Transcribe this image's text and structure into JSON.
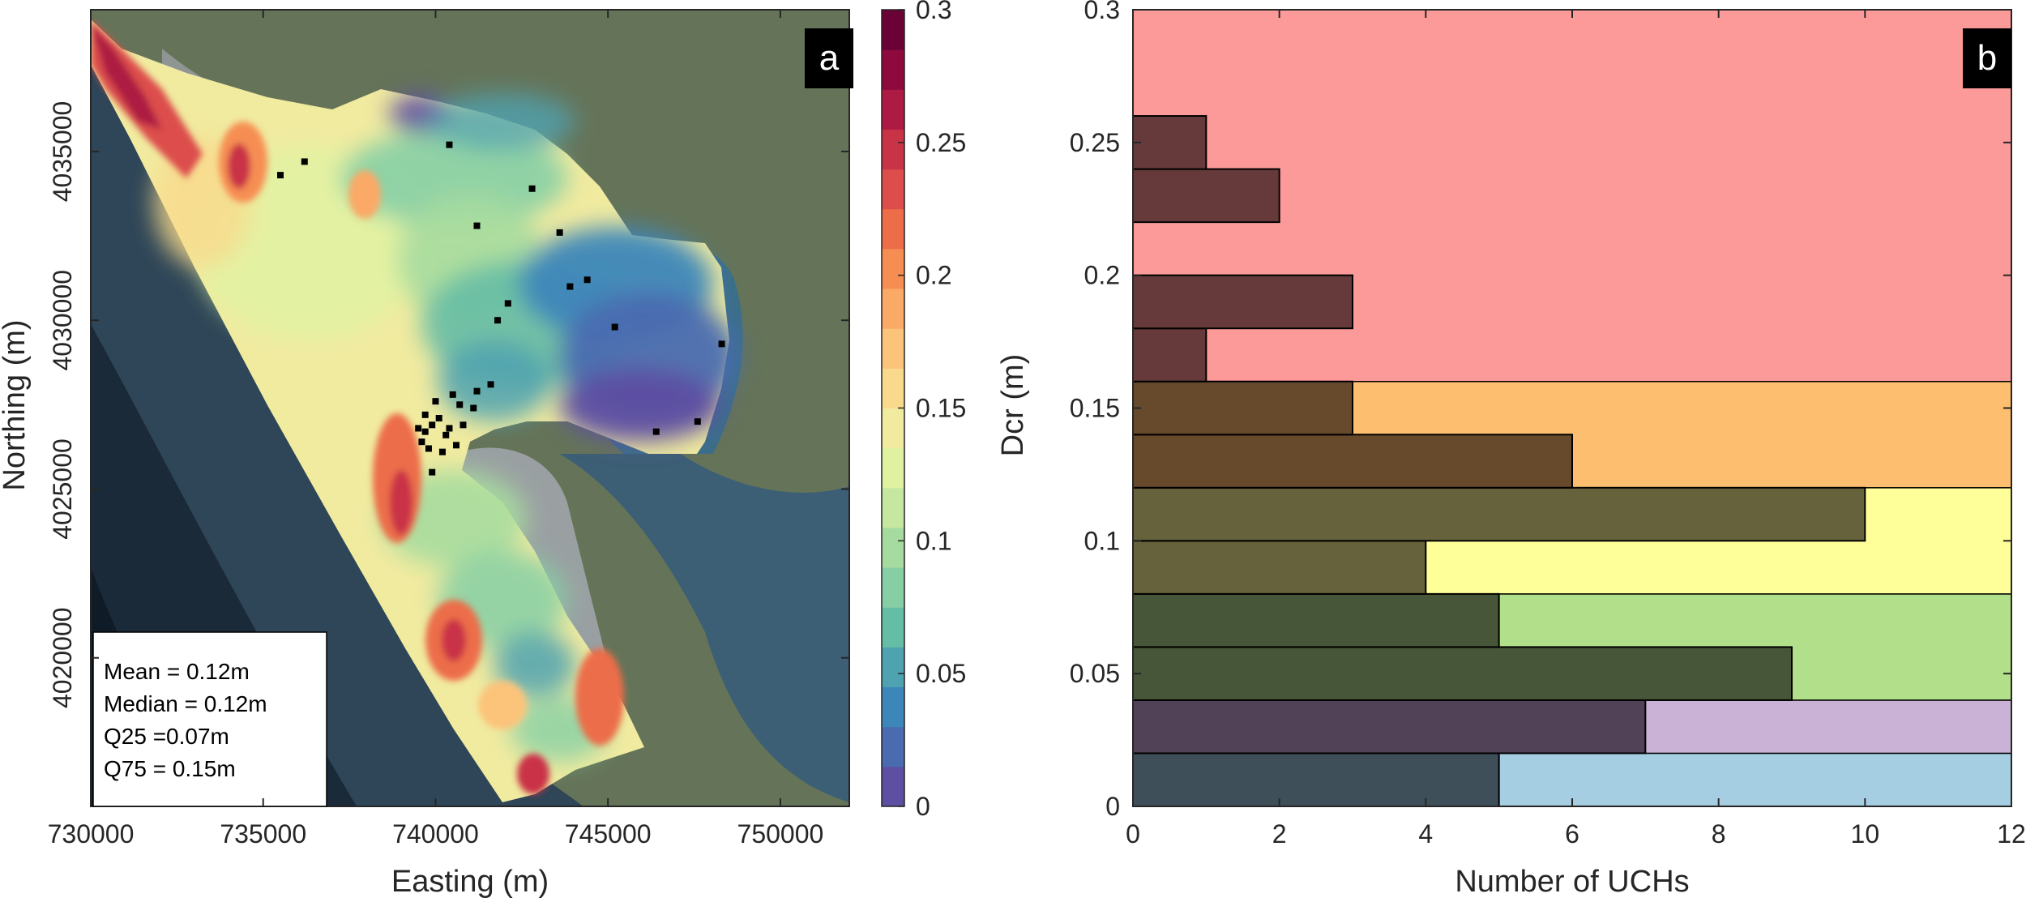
{
  "chart_data": [
    {
      "panel": "a",
      "type": "heatmap",
      "description_label": "a",
      "xlabel": "Easting (m)",
      "ylabel": "Northing (m)",
      "xlim": [
        730000,
        752000
      ],
      "ylim": [
        4015600,
        4039200
      ],
      "x_ticks": [
        730000,
        735000,
        740000,
        745000,
        750000
      ],
      "x_tick_labels": [
        "730000",
        "735000",
        "740000",
        "745000",
        "750000"
      ],
      "y_ticks": [
        4020000,
        4025000,
        4030000,
        4035000
      ],
      "y_tick_labels": [
        "4020000",
        "4025000",
        "4030000",
        "4035000"
      ],
      "colorbar": {
        "range": [
          0,
          0.3
        ],
        "ticks": [
          0,
          0.05,
          0.1,
          0.15,
          0.2,
          0.25,
          0.3
        ],
        "tick_labels": [
          "0",
          "0.05",
          "0.1",
          "0.15",
          "0.2",
          "0.25",
          "0.3"
        ],
        "colors": [
          "#5e4fa2",
          "#4a6bb0",
          "#3d86b9",
          "#4fa2b0",
          "#66bda5",
          "#86cfa5",
          "#a6db9f",
          "#c5e7a0",
          "#e0f2a2",
          "#f1eba0",
          "#f9d98c",
          "#fcc37a",
          "#fba966",
          "#f68e53",
          "#ec6d48",
          "#dc4d4b",
          "#c93346",
          "#ad1a43",
          "#8e0a3d",
          "#6b0236"
        ]
      },
      "stats": [
        "Mean = 0.12m",
        "Median = 0.12m",
        "Q25 =0.07m",
        "Q75 = 0.15m"
      ],
      "points": [
        [
          735500,
          4034300
        ],
        [
          736200,
          4034700
        ],
        [
          740400,
          4035200
        ],
        [
          742800,
          4033900
        ],
        [
          741200,
          4032800
        ],
        [
          743600,
          4032600
        ],
        [
          744400,
          4031200
        ],
        [
          743900,
          4031000
        ],
        [
          742100,
          4030500
        ],
        [
          741800,
          4030000
        ],
        [
          745200,
          4029800
        ],
        [
          748300,
          4029300
        ],
        [
          741600,
          4028100
        ],
        [
          741200,
          4027900
        ],
        [
          740700,
          4027500
        ],
        [
          740100,
          4027100
        ],
        [
          739900,
          4026900
        ],
        [
          739700,
          4026700
        ],
        [
          740300,
          4026600
        ],
        [
          740600,
          4026300
        ],
        [
          739600,
          4026400
        ],
        [
          740800,
          4026900
        ],
        [
          741100,
          4027400
        ],
        [
          739800,
          4026200
        ],
        [
          740200,
          4026100
        ],
        [
          739500,
          4026800
        ],
        [
          740000,
          4027600
        ],
        [
          740500,
          4027800
        ],
        [
          739900,
          4025500
        ],
        [
          746400,
          4026700
        ],
        [
          747600,
          4027000
        ],
        [
          739700,
          4027200
        ],
        [
          740400,
          4026800
        ]
      ]
    },
    {
      "panel": "b",
      "type": "bar",
      "orientation": "horizontal",
      "description_label": "b",
      "xlabel": "Number of UCHs",
      "ylabel": "Dcr (m)",
      "xlim": [
        0,
        12
      ],
      "ylim": [
        0,
        0.3
      ],
      "x_ticks": [
        0,
        2,
        4,
        6,
        8,
        10,
        12
      ],
      "x_tick_labels": [
        "0",
        "2",
        "4",
        "6",
        "8",
        "10",
        "12"
      ],
      "y_ticks": [
        0,
        0.05,
        0.1,
        0.15,
        0.2,
        0.25,
        0.3
      ],
      "y_tick_labels": [
        "0",
        "0.05",
        "0.1",
        "0.15",
        "0.2",
        "0.25",
        "0.3"
      ],
      "bins": [
        {
          "lo": 0.0,
          "hi": 0.02,
          "count": 5
        },
        {
          "lo": 0.02,
          "hi": 0.04,
          "count": 7
        },
        {
          "lo": 0.04,
          "hi": 0.06,
          "count": 9
        },
        {
          "lo": 0.06,
          "hi": 0.08,
          "count": 5
        },
        {
          "lo": 0.08,
          "hi": 0.1,
          "count": 4
        },
        {
          "lo": 0.1,
          "hi": 0.12,
          "count": 10
        },
        {
          "lo": 0.12,
          "hi": 0.14,
          "count": 6
        },
        {
          "lo": 0.14,
          "hi": 0.16,
          "count": 3
        },
        {
          "lo": 0.16,
          "hi": 0.18,
          "count": 1
        },
        {
          "lo": 0.18,
          "hi": 0.2,
          "count": 3
        },
        {
          "lo": 0.2,
          "hi": 0.22,
          "count": 0
        },
        {
          "lo": 0.22,
          "hi": 0.24,
          "count": 2
        },
        {
          "lo": 0.24,
          "hi": 0.26,
          "count": 1
        }
      ],
      "bands": [
        {
          "lo": 0.0,
          "hi": 0.02,
          "color": "#a6cee3",
          "bar_color": "#3e4f5a"
        },
        {
          "lo": 0.02,
          "hi": 0.04,
          "color": "#cab2d6",
          "bar_color": "#524257"
        },
        {
          "lo": 0.04,
          "hi": 0.08,
          "color": "#b2df8a",
          "bar_color": "#475638"
        },
        {
          "lo": 0.08,
          "hi": 0.12,
          "color": "#ffff99",
          "bar_color": "#66623b"
        },
        {
          "lo": 0.12,
          "hi": 0.16,
          "color": "#fdbf6f",
          "bar_color": "#67492c"
        },
        {
          "lo": 0.16,
          "hi": 0.3,
          "color": "#fb9a99",
          "bar_color": "#663a3b"
        }
      ]
    }
  ]
}
